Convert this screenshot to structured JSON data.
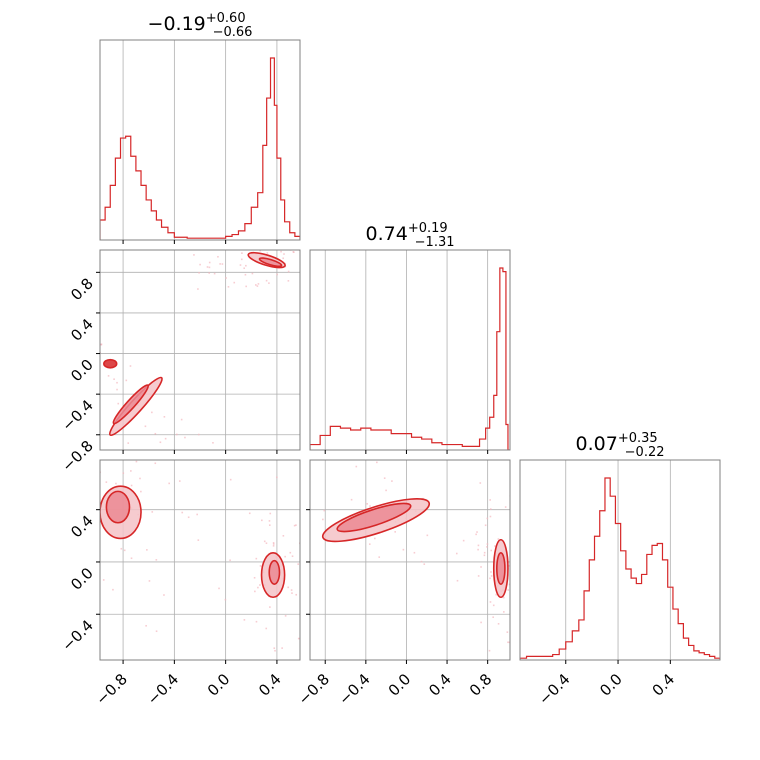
{
  "chart_data": {
    "type": "corner",
    "color": "#d62728",
    "fill_light": "#f5c2c7",
    "fill_mid": "#eb8a93",
    "grid": true,
    "titles": [
      {
        "center": "−0.19",
        "plus": "+0.60",
        "minus": "−0.66"
      },
      {
        "center": "0.74",
        "plus": "+0.19",
        "minus": "−1.31"
      },
      {
        "center": "0.07",
        "plus": "+0.35",
        "minus": "−0.22"
      }
    ],
    "x_ticks": {
      "p0": {
        "values": [
          -0.8,
          -0.4,
          0.0,
          0.4
        ],
        "labels": [
          "−0.8",
          "−0.4",
          "0.0",
          "0.4"
        ]
      },
      "p1": {
        "values": [
          -0.8,
          -0.4,
          0.0,
          0.4,
          0.8
        ],
        "labels": [
          "−0.8",
          "−0.4",
          "0.0",
          "0.4",
          "0.8"
        ]
      },
      "p2": {
        "values": [
          -0.4,
          0.0,
          0.4
        ],
        "labels": [
          "−0.4",
          "0.0",
          "0.4"
        ]
      }
    },
    "y_ticks": {
      "row1": {
        "values": [
          -0.8,
          -0.4,
          0.0,
          0.4,
          0.8
        ],
        "labels": [
          "−0.8",
          "−0.4",
          "0.0",
          "0.4",
          "0.8"
        ]
      },
      "row2": {
        "values": [
          -0.4,
          0.0,
          0.4
        ],
        "labels": [
          "−0.4",
          "0.0",
          "0.4"
        ]
      }
    },
    "ranges": {
      "p0": [
        -0.98,
        0.58
      ],
      "p1": [
        -0.95,
        1.02
      ],
      "p2": [
        -0.75,
        0.78
      ]
    },
    "hist": {
      "p0": {
        "x": [
          -0.98,
          -0.94,
          -0.9,
          -0.86,
          -0.82,
          -0.78,
          -0.74,
          -0.7,
          -0.66,
          -0.62,
          -0.58,
          -0.54,
          -0.5,
          -0.45,
          -0.4,
          -0.3,
          -0.2,
          -0.1,
          0.0,
          0.05,
          0.1,
          0.15,
          0.2,
          0.25,
          0.29,
          0.32,
          0.35,
          0.38,
          0.4,
          0.43,
          0.46,
          0.5,
          0.54,
          0.58
        ],
        "y": [
          0.11,
          0.18,
          0.3,
          0.45,
          0.56,
          0.57,
          0.46,
          0.38,
          0.3,
          0.22,
          0.16,
          0.11,
          0.07,
          0.04,
          0.015,
          0.01,
          0.01,
          0.01,
          0.02,
          0.03,
          0.05,
          0.09,
          0.18,
          0.26,
          0.52,
          0.78,
          1.0,
          0.74,
          0.45,
          0.22,
          0.1,
          0.04,
          0.02,
          0.0
        ]
      },
      "p1": {
        "x": [
          -0.95,
          -0.85,
          -0.75,
          -0.65,
          -0.55,
          -0.45,
          -0.35,
          -0.25,
          -0.15,
          -0.05,
          0.05,
          0.15,
          0.25,
          0.35,
          0.45,
          0.55,
          0.65,
          0.72,
          0.78,
          0.82,
          0.86,
          0.89,
          0.92,
          0.95,
          0.98,
          1.0
        ],
        "y": [
          0.03,
          0.08,
          0.13,
          0.12,
          0.11,
          0.12,
          0.11,
          0.11,
          0.09,
          0.09,
          0.07,
          0.06,
          0.04,
          0.03,
          0.03,
          0.02,
          0.02,
          0.06,
          0.12,
          0.18,
          0.3,
          0.65,
          1.0,
          0.98,
          0.14,
          0.0
        ]
      },
      "p2": {
        "x": [
          -0.75,
          -0.7,
          -0.6,
          -0.5,
          -0.45,
          -0.4,
          -0.35,
          -0.3,
          -0.26,
          -0.22,
          -0.18,
          -0.14,
          -0.1,
          -0.06,
          -0.02,
          0.02,
          0.06,
          0.1,
          0.14,
          0.18,
          0.22,
          0.26,
          0.3,
          0.34,
          0.38,
          0.42,
          0.46,
          0.5,
          0.54,
          0.58,
          0.62,
          0.66,
          0.7,
          0.74,
          0.78
        ],
        "y": [
          0.01,
          0.02,
          0.02,
          0.03,
          0.06,
          0.1,
          0.16,
          0.22,
          0.38,
          0.55,
          0.68,
          0.82,
          1.0,
          0.9,
          0.75,
          0.6,
          0.5,
          0.45,
          0.42,
          0.47,
          0.58,
          0.63,
          0.64,
          0.55,
          0.4,
          0.28,
          0.2,
          0.12,
          0.08,
          0.05,
          0.04,
          0.03,
          0.02,
          0.01,
          0.0
        ]
      }
    },
    "contours": {
      "p0_p1": [
        {
          "cx": -0.7,
          "cy": -0.52,
          "rx": 0.3,
          "ry": 0.06,
          "rot": -48,
          "level": "outer"
        },
        {
          "cx": -0.74,
          "cy": -0.5,
          "rx": 0.2,
          "ry": 0.04,
          "rot": -48,
          "level": "mid"
        },
        {
          "cx": -0.9,
          "cy": -0.1,
          "rx": 0.05,
          "ry": 0.04,
          "rot": 0,
          "level": "inner"
        },
        {
          "cx": 0.32,
          "cy": 0.92,
          "rx": 0.15,
          "ry": 0.05,
          "rot": 17,
          "level": "outer"
        },
        {
          "cx": 0.35,
          "cy": 0.9,
          "rx": 0.09,
          "ry": 0.025,
          "rot": 17,
          "level": "mid"
        }
      ],
      "p0_p2": [
        {
          "cx": -0.82,
          "cy": 0.38,
          "rx": 0.16,
          "ry": 0.2,
          "rot": 0,
          "level": "outer"
        },
        {
          "cx": -0.84,
          "cy": 0.42,
          "rx": 0.09,
          "ry": 0.12,
          "rot": 0,
          "level": "mid"
        },
        {
          "cx": 0.37,
          "cy": -0.1,
          "rx": 0.09,
          "ry": 0.17,
          "rot": 0,
          "level": "outer"
        },
        {
          "cx": 0.38,
          "cy": -0.08,
          "rx": 0.04,
          "ry": 0.09,
          "rot": 0,
          "level": "mid"
        }
      ],
      "p1_p2": [
        {
          "cx": -0.3,
          "cy": 0.32,
          "rx": 0.55,
          "ry": 0.1,
          "rot": -18,
          "level": "outer"
        },
        {
          "cx": -0.32,
          "cy": 0.34,
          "rx": 0.38,
          "ry": 0.06,
          "rot": -18,
          "level": "mid"
        },
        {
          "cx": 0.93,
          "cy": -0.05,
          "rx": 0.07,
          "ry": 0.22,
          "rot": 0,
          "level": "outer"
        },
        {
          "cx": 0.93,
          "cy": -0.05,
          "rx": 0.04,
          "ry": 0.12,
          "rot": 0,
          "level": "mid"
        }
      ]
    }
  }
}
